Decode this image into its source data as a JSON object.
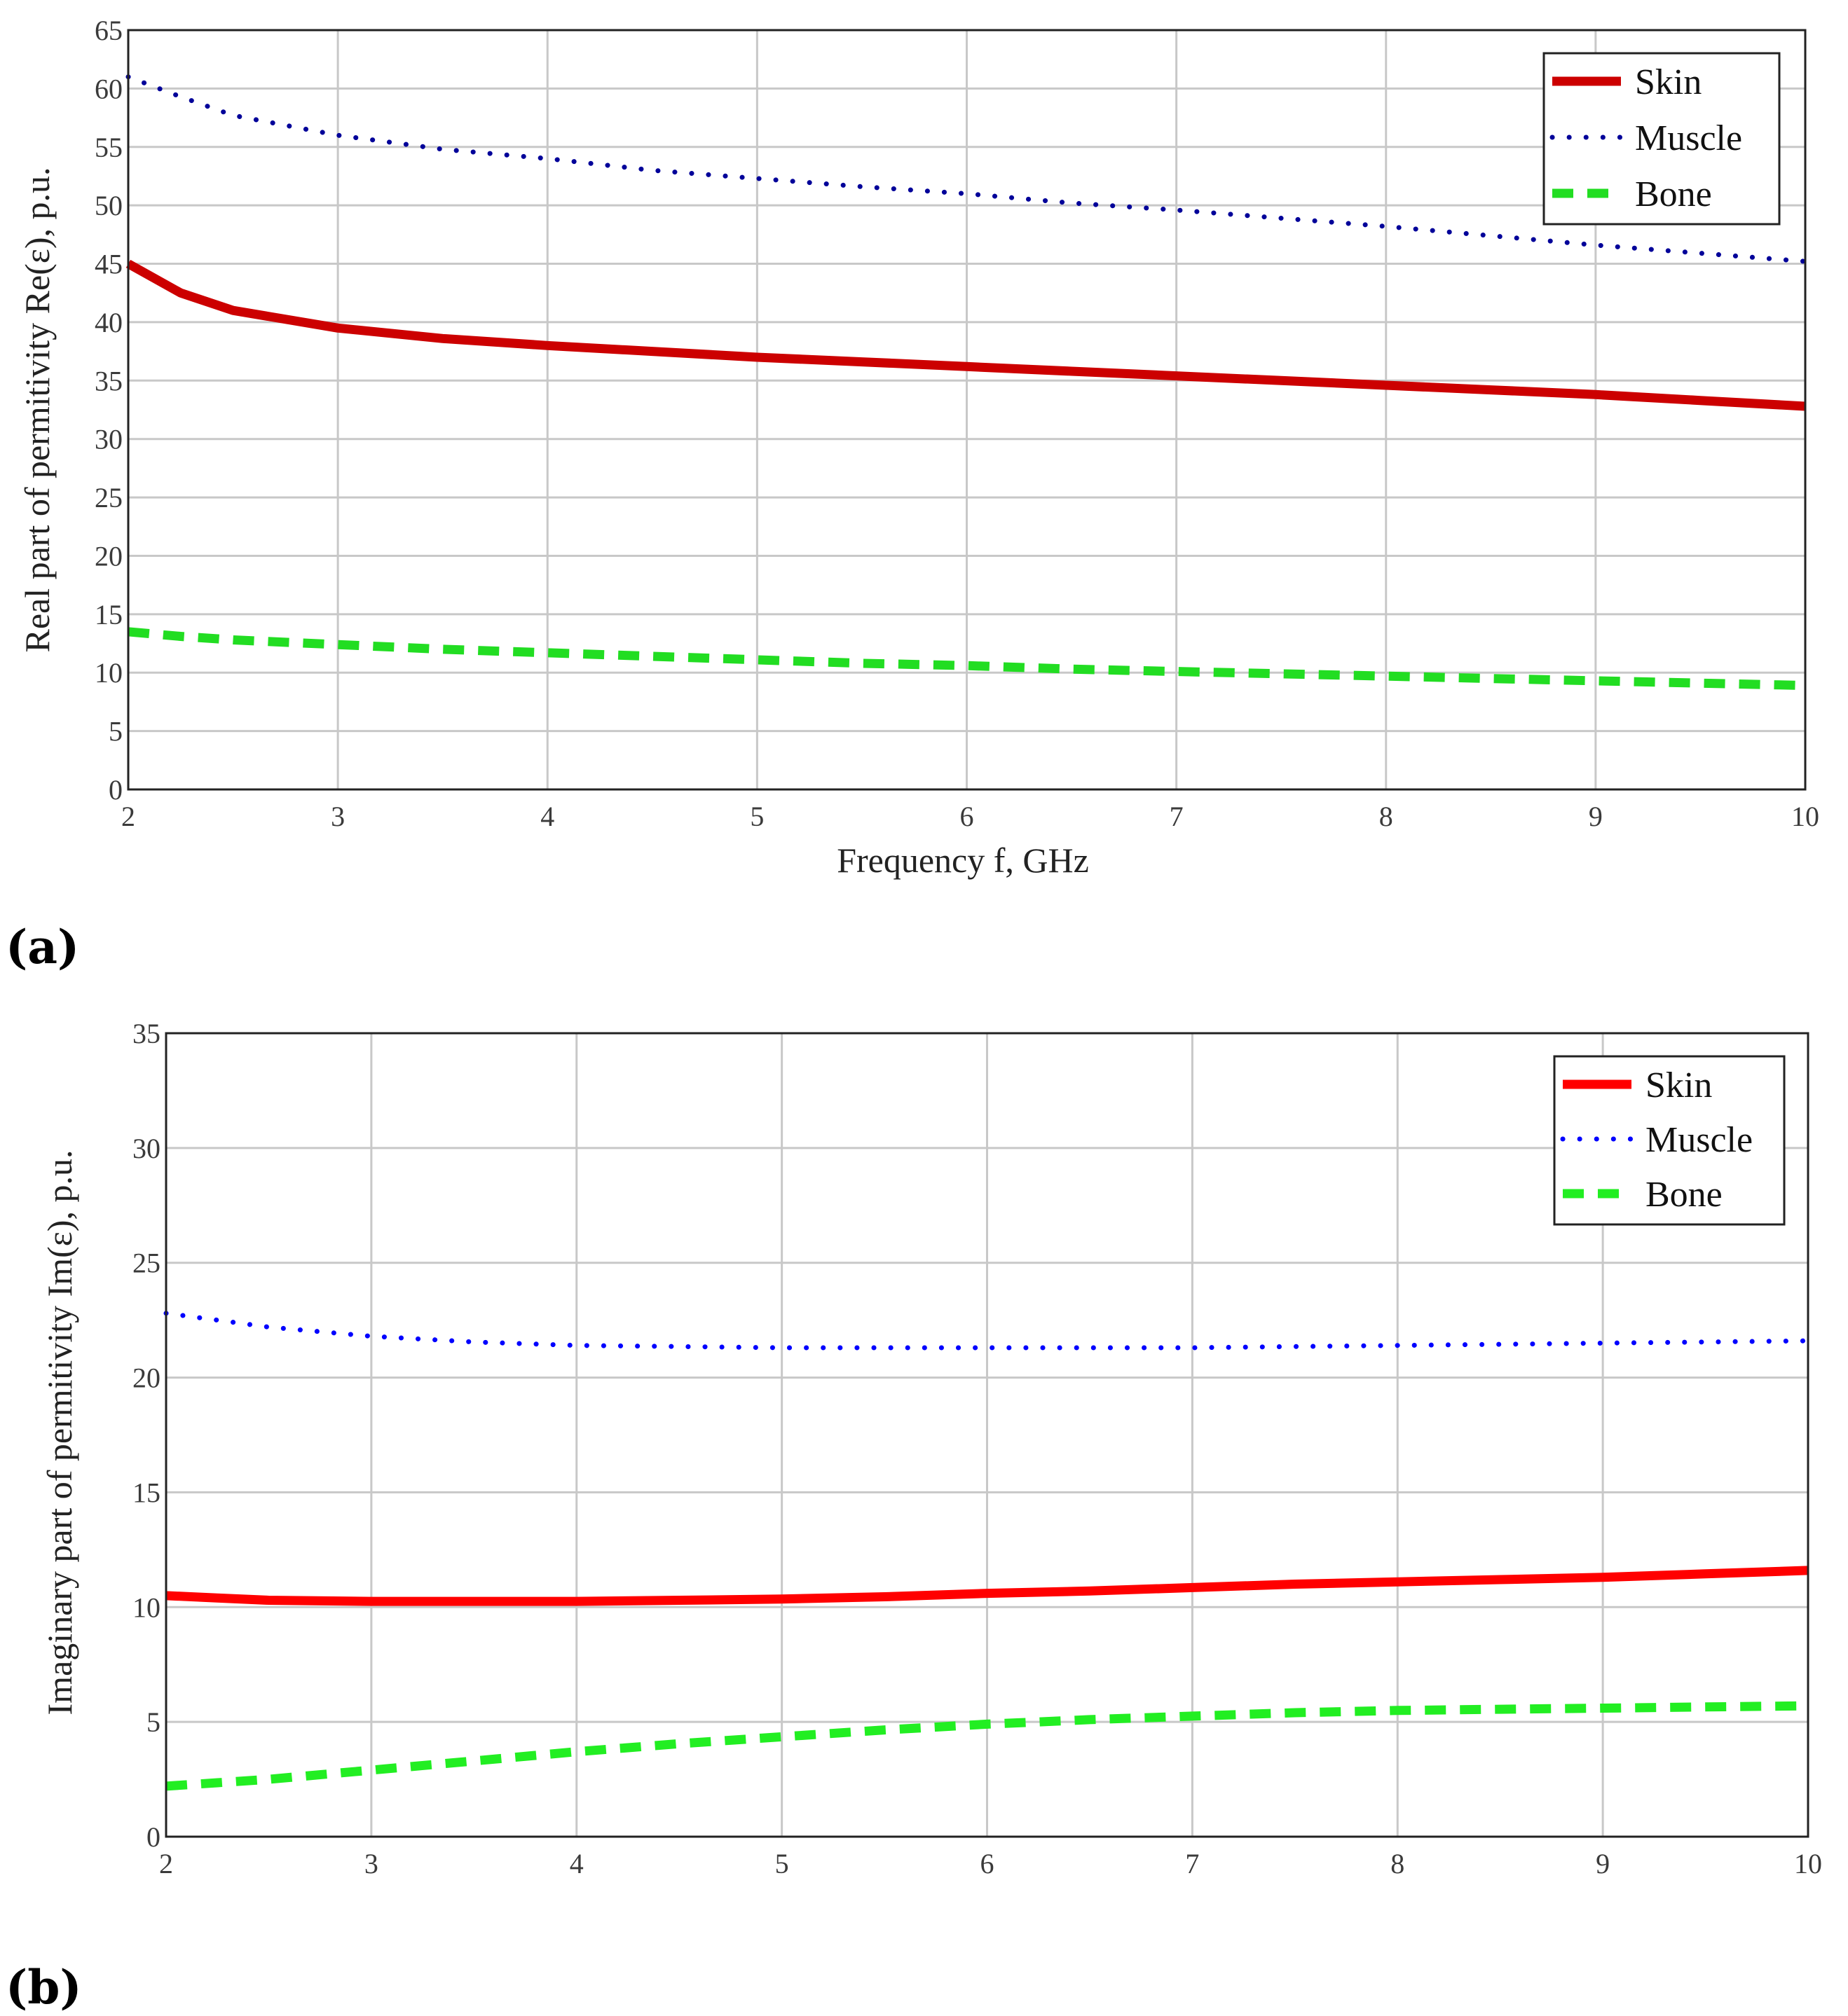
{
  "chart_data": [
    {
      "panel_label": "(a)",
      "type": "line",
      "title": "",
      "xlabel": "Frequency f, GHz",
      "ylabel": "Real part of permitivity Re(ε), p.u.",
      "xlim": [
        2,
        10
      ],
      "ylim": [
        0,
        65
      ],
      "xticks": [
        "2",
        "3",
        "4",
        "5",
        "6",
        "7",
        "8",
        "9",
        "10"
      ],
      "yticks": [
        "0",
        "5",
        "10",
        "15",
        "20",
        "25",
        "30",
        "35",
        "40",
        "45",
        "50",
        "55",
        "60",
        "65"
      ],
      "grid": true,
      "legend_position": "top-right",
      "x": [
        2,
        2.25,
        2.5,
        3,
        3.5,
        4,
        4.5,
        5,
        5.5,
        6,
        6.5,
        7,
        7.5,
        8,
        8.5,
        9,
        9.5,
        10
      ],
      "series": [
        {
          "name": "Skin",
          "color": "#cc0000",
          "style": "solid",
          "values": [
            45.0,
            42.5,
            41.0,
            39.5,
            38.6,
            38.0,
            37.5,
            37.0,
            36.6,
            36.2,
            35.8,
            35.4,
            35.0,
            34.6,
            34.2,
            33.8,
            33.3,
            32.8
          ]
        },
        {
          "name": "Muscle",
          "color": "#000099",
          "style": "dotted",
          "values": [
            61.0,
            59.3,
            57.7,
            56.0,
            54.8,
            54.0,
            53.0,
            52.3,
            51.6,
            51.0,
            50.2,
            49.6,
            48.9,
            48.2,
            47.4,
            46.6,
            45.9,
            45.2
          ]
        },
        {
          "name": "Bone",
          "color": "#22dd22",
          "style": "dashed",
          "values": [
            13.5,
            13.1,
            12.8,
            12.4,
            12.0,
            11.7,
            11.4,
            11.1,
            10.8,
            10.6,
            10.3,
            10.1,
            9.9,
            9.7,
            9.5,
            9.3,
            9.1,
            8.9
          ]
        }
      ]
    },
    {
      "panel_label": "(b)",
      "type": "line",
      "title": "",
      "xlabel": "",
      "ylabel": "Imaginary part of permitivity Im(ε), p.u.",
      "xlim": [
        2,
        10
      ],
      "ylim": [
        0,
        35
      ],
      "xticks": [
        "2",
        "3",
        "4",
        "5",
        "6",
        "7",
        "8",
        "9",
        "10"
      ],
      "yticks": [
        "0",
        "5",
        "10",
        "15",
        "20",
        "25",
        "30",
        "35"
      ],
      "grid": true,
      "legend_position": "top-right",
      "x": [
        2,
        2.25,
        2.5,
        3,
        3.5,
        4,
        4.5,
        5,
        5.5,
        6,
        6.5,
        7,
        7.5,
        8,
        8.5,
        9,
        9.5,
        10
      ],
      "series": [
        {
          "name": "Skin",
          "color": "#ff0000",
          "style": "solid",
          "values": [
            10.5,
            10.4,
            10.3,
            10.25,
            10.25,
            10.25,
            10.3,
            10.35,
            10.45,
            10.6,
            10.7,
            10.85,
            11.0,
            11.1,
            11.2,
            11.3,
            11.45,
            11.6
          ]
        },
        {
          "name": "Muscle",
          "color": "#0000ff",
          "style": "dotted",
          "values": [
            22.8,
            22.5,
            22.2,
            21.8,
            21.55,
            21.4,
            21.35,
            21.3,
            21.3,
            21.3,
            21.3,
            21.3,
            21.35,
            21.4,
            21.45,
            21.5,
            21.55,
            21.6
          ]
        },
        {
          "name": "Bone",
          "color": "#22ee22",
          "style": "dashed",
          "values": [
            2.2,
            2.35,
            2.5,
            2.9,
            3.3,
            3.7,
            4.05,
            4.35,
            4.65,
            4.9,
            5.1,
            5.25,
            5.4,
            5.5,
            5.55,
            5.6,
            5.65,
            5.7
          ]
        }
      ]
    }
  ]
}
